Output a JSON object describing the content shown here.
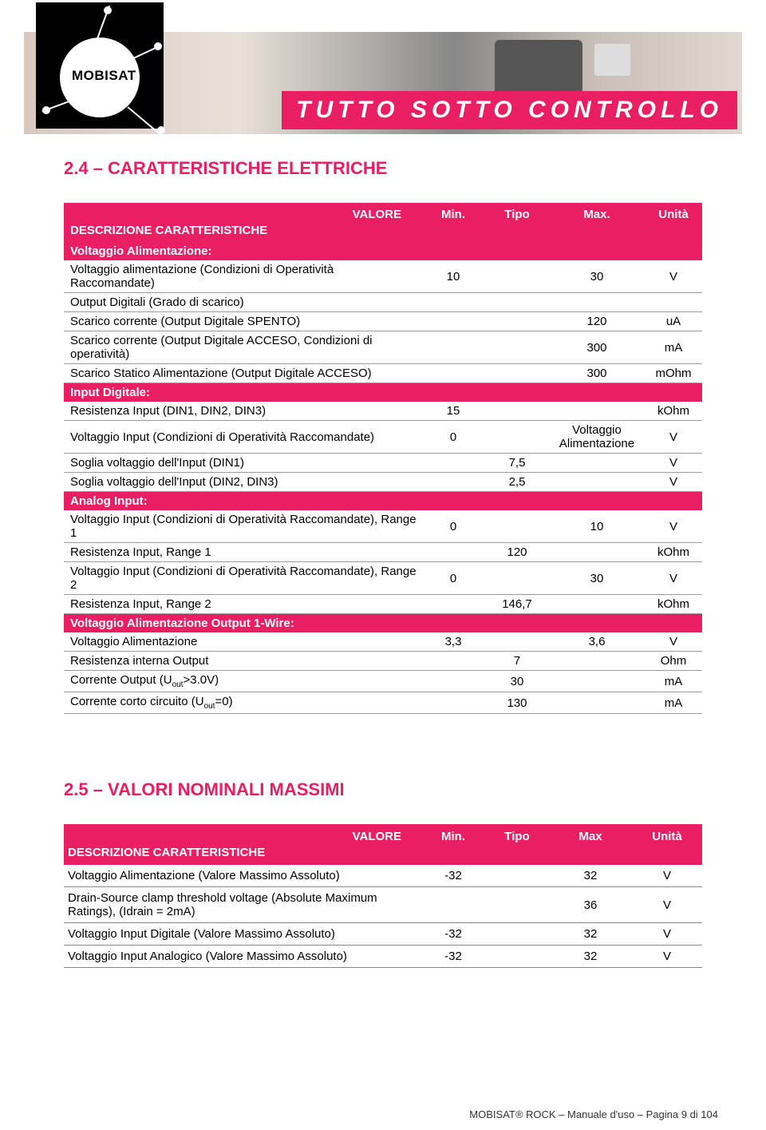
{
  "logo": {
    "text": "MOBISAT"
  },
  "tagline": "TUTTO SOTTO CONTROLLO",
  "colors": {
    "accent": "#e91e63",
    "text": "#333",
    "border": "#999"
  },
  "section1": {
    "title": "2.4 – CARATTERISTICHE ELETTRICHE",
    "headers": {
      "desc": "DESCRIZIONE CARATTERISTICHE",
      "valore": "VALORE",
      "min": "Min.",
      "tipo": "Tipo",
      "max": "Max.",
      "unita": "Unità"
    },
    "groups": [
      {
        "label": "Voltaggio Alimentazione:",
        "rows": [
          {
            "desc": "Voltaggio alimentazione (Condizioni di Operatività Raccomandate)",
            "min": "10",
            "tipo": "",
            "max": "30",
            "unit": "V"
          },
          {
            "desc": "Output Digitali (Grado di scarico)",
            "min": "",
            "tipo": "",
            "max": "",
            "unit": ""
          },
          {
            "desc": "Scarico corrente (Output Digitale SPENTO)",
            "min": "",
            "tipo": "",
            "max": "120",
            "unit": "uA"
          },
          {
            "desc": "Scarico corrente (Output Digitale ACCESO, Condizioni di operatività)",
            "min": "",
            "tipo": "",
            "max": "300",
            "unit": "mA"
          },
          {
            "desc": "Scarico Statico Alimentazione (Output Digitale ACCESO)",
            "min": "",
            "tipo": "",
            "max": "300",
            "unit": "mOhm"
          }
        ]
      },
      {
        "label": "Input Digitale:",
        "rows": [
          {
            "desc": "Resistenza Input (DIN1, DIN2, DIN3)",
            "min": "15",
            "tipo": "",
            "max": "",
            "unit": "kOhm"
          },
          {
            "desc": "Voltaggio Input (Condizioni di Operatività Raccomandate)",
            "min": "0",
            "tipo": "",
            "max": "Voltaggio Alimentazione",
            "unit": "V"
          },
          {
            "desc": "Soglia voltaggio dell'Input (DIN1)",
            "min": "",
            "tipo": "7,5",
            "max": "",
            "unit": "V"
          },
          {
            "desc": "Soglia voltaggio dell'Input (DIN2, DIN3)",
            "min": "",
            "tipo": "2,5",
            "max": "",
            "unit": "V"
          }
        ]
      },
      {
        "label": "Analog Input:",
        "rows": [
          {
            "desc": "Voltaggio Input (Condizioni di Operatività Raccomandate), Range 1",
            "min": "0",
            "tipo": "",
            "max": "10",
            "unit": "V"
          },
          {
            "desc": "Resistenza Input, Range 1",
            "min": "",
            "tipo": "120",
            "max": "",
            "unit": "kOhm"
          },
          {
            "desc": "Voltaggio Input (Condizioni di Operatività Raccomandate), Range 2",
            "min": "0",
            "tipo": "",
            "max": "30",
            "unit": "V"
          },
          {
            "desc": "Resistenza Input, Range 2",
            "min": "",
            "tipo": "146,7",
            "max": "",
            "unit": "kOhm"
          }
        ]
      },
      {
        "label": "Voltaggio Alimentazione Output 1-Wire:",
        "rows": [
          {
            "desc": "Voltaggio Alimentazione",
            "min": "3,3",
            "tipo": "",
            "max": "3,6",
            "unit": "V"
          },
          {
            "desc": "Resistenza interna Output",
            "min": "",
            "tipo": "7",
            "max": "",
            "unit": "Ohm"
          },
          {
            "desc": "Corrente Output (U",
            "desc_sub": "out",
            "desc_suffix": ">3.0V)",
            "min": "",
            "tipo": "30",
            "max": "",
            "unit": "mA"
          },
          {
            "desc": "Corrente corto circuito (U",
            "desc_sub": "out",
            "desc_suffix": "=0)",
            "min": "",
            "tipo": "130",
            "max": "",
            "unit": "mA"
          }
        ]
      }
    ]
  },
  "section2": {
    "title": "2.5 – VALORI NOMINALI MASSIMI",
    "headers": {
      "desc": "DESCRIZIONE CARATTERISTICHE",
      "valore": "VALORE",
      "min": "Min.",
      "tipo": "Tipo",
      "max": "Max",
      "unita": "Unità"
    },
    "rows": [
      {
        "desc": "Voltaggio Alimentazione (Valore Massimo Assoluto)",
        "min": "-32",
        "tipo": "",
        "max": "32",
        "unit": "V"
      },
      {
        "desc": "Drain-Source clamp threshold voltage (Absolute   Maximum Ratings), (Idrain = 2mA)",
        "min": "",
        "tipo": "",
        "max": "36",
        "unit": "V"
      },
      {
        "desc": "Voltaggio Input Digitale (Valore Massimo Assoluto)",
        "min": "-32",
        "tipo": "",
        "max": "32",
        "unit": "V"
      },
      {
        "desc": "Voltaggio Input Analogico (Valore Massimo Assoluto)",
        "min": "-32",
        "tipo": "",
        "max": "32",
        "unit": "V"
      }
    ]
  },
  "footer": "MOBISAT® ROCK – Manuale d'uso – Pagina 9 di 104"
}
